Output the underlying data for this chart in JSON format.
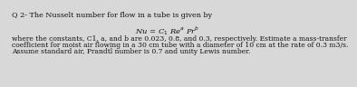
{
  "background_color": "#d8d8d8",
  "title_line": "Q 2- The Nusselt number for flow in a tube is given by",
  "formula": "Nu = C$_1$ Re$^a$ Pr$^b$",
  "body_line1": "where the constants, C1, a, and b are 0.023, 0.8, and 0.3, respectively. Estimate a mass-transfer",
  "body_line2": "coefficient for moist air flowing in a 30 cm tube with a diameter of 10 cm at the rate of 0.3 m3/s.",
  "body_line3": "Assume standard air, Prandtl number is 0.7 and unity Lewis number.",
  "font_size_title": 5.8,
  "font_size_formula": 6.0,
  "font_size_body": 5.5,
  "text_color": "#111111"
}
